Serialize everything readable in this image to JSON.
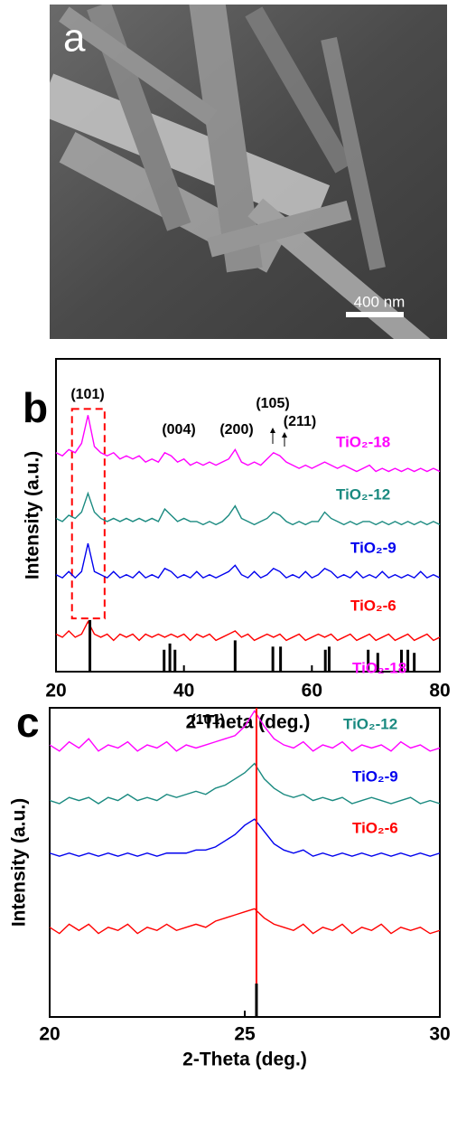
{
  "panel_a": {
    "label": "a",
    "scale_bar": "400 nm"
  },
  "chart_data": [
    {
      "type": "line",
      "panel_label": "b",
      "x_label": "2-Theta (deg.)",
      "y_label": "Intensity (a.u.)",
      "x": [
        20,
        21,
        22,
        23,
        24,
        25,
        26,
        27,
        28,
        29,
        30,
        31,
        32,
        33,
        34,
        35,
        36,
        37,
        38,
        39,
        40,
        41,
        42,
        43,
        44,
        45,
        46,
        47,
        48,
        49,
        50,
        51,
        52,
        53,
        54,
        55,
        56,
        57,
        58,
        59,
        60,
        61,
        62,
        63,
        64,
        65,
        66,
        67,
        68,
        69,
        70,
        71,
        72,
        73,
        74,
        75,
        76,
        77,
        78,
        79,
        80
      ],
      "series": [
        {
          "name": "TiO₂-18",
          "color": "#ff00ff",
          "values": [
            70,
            69,
            71,
            70,
            73,
            82,
            72,
            70,
            69,
            70,
            68,
            69,
            68,
            69,
            67,
            68,
            67,
            70,
            69,
            67,
            68,
            66,
            67,
            66,
            67,
            66,
            67,
            68,
            71,
            67,
            66,
            67,
            66,
            68,
            70,
            69,
            67,
            66,
            65,
            66,
            65,
            66,
            67,
            66,
            65,
            66,
            65,
            64,
            65,
            66,
            64,
            65,
            64,
            65,
            64,
            65,
            64,
            65,
            64,
            65,
            64
          ]
        },
        {
          "name": "TiO₂-12",
          "color": "#1a8a80",
          "values": [
            49,
            48,
            50,
            49,
            51,
            57,
            51,
            49,
            48,
            49,
            48,
            49,
            48,
            49,
            48,
            49,
            48,
            52,
            50,
            48,
            49,
            48,
            48,
            47,
            48,
            47,
            48,
            50,
            53,
            49,
            48,
            47,
            48,
            49,
            51,
            50,
            48,
            47,
            48,
            47,
            48,
            48,
            51,
            49,
            48,
            47,
            48,
            47,
            48,
            48,
            47,
            48,
            47,
            48,
            47,
            48,
            47,
            48,
            47,
            48,
            47
          ]
        },
        {
          "name": "TiO₂-9",
          "color": "#0000ee",
          "values": [
            31,
            30,
            32,
            30,
            32,
            41,
            32,
            31,
            30,
            32,
            30,
            31,
            30,
            32,
            30,
            31,
            30,
            33,
            32,
            30,
            31,
            30,
            32,
            30,
            31,
            30,
            31,
            32,
            34,
            31,
            30,
            32,
            30,
            31,
            33,
            32,
            30,
            31,
            30,
            32,
            30,
            31,
            33,
            32,
            30,
            31,
            30,
            32,
            30,
            31,
            30,
            32,
            30,
            31,
            30,
            31,
            30,
            32,
            30,
            31,
            30
          ]
        },
        {
          "name": "TiO₂-6",
          "color": "#ff0000",
          "values": [
            12,
            11,
            13,
            11,
            12,
            16,
            12,
            11,
            12,
            10,
            12,
            11,
            12,
            10,
            12,
            11,
            12,
            11,
            12,
            11,
            12,
            10,
            12,
            11,
            12,
            10,
            11,
            12,
            13,
            11,
            12,
            10,
            11,
            12,
            11,
            12,
            10,
            11,
            12,
            10,
            11,
            12,
            11,
            12,
            10,
            11,
            12,
            10,
            11,
            12,
            10,
            11,
            12,
            10,
            11,
            12,
            10,
            11,
            12,
            10,
            11
          ]
        }
      ],
      "reference": {
        "color": "#000000",
        "x": [
          25.3,
          36.9,
          37.8,
          38.6,
          48.0,
          53.9,
          55.1,
          62.1,
          62.7,
          68.8,
          70.3,
          74.0,
          75.0,
          76.0
        ],
        "values": [
          16.5,
          7,
          9,
          7,
          10,
          8,
          8,
          7,
          8,
          7,
          6,
          7,
          7,
          6
        ]
      },
      "highlight_box": {
        "color": "#ff0000",
        "xlim": [
          22.5,
          27.6
        ],
        "ylim": [
          17,
          84
        ]
      },
      "annotations": [
        "(101)",
        "(004)",
        "(200)",
        "(105)",
        "(211)"
      ],
      "xlim": [
        20,
        80
      ],
      "xticks": [
        20,
        40,
        60,
        80
      ],
      "ylim": [
        0,
        100
      ]
    },
    {
      "type": "line",
      "panel_label": "c",
      "x_label": "2-Theta (deg.)",
      "y_label": "Intensity (a.u.)",
      "x": [
        20,
        20.25,
        20.5,
        20.75,
        21,
        21.25,
        21.5,
        21.75,
        22,
        22.25,
        22.5,
        22.75,
        23,
        23.25,
        23.5,
        23.75,
        24,
        24.25,
        24.5,
        24.75,
        25,
        25.25,
        25.5,
        25.75,
        26,
        26.25,
        26.5,
        26.75,
        27,
        27.25,
        27.5,
        27.75,
        28,
        28.25,
        28.5,
        28.75,
        29,
        29.25,
        29.5,
        29.75,
        30
      ],
      "series": [
        {
          "name": "TiO₂-18",
          "color": "#ff00ff",
          "values": [
            88,
            86,
            89,
            87,
            90,
            86,
            88,
            87,
            89,
            86,
            88,
            87,
            89,
            86,
            88,
            87,
            88,
            89,
            90,
            91,
            94,
            99,
            94,
            90,
            88,
            87,
            89,
            86,
            88,
            87,
            89,
            86,
            88,
            87,
            88,
            86,
            89,
            87,
            88,
            86,
            87
          ]
        },
        {
          "name": "TiO₂-12",
          "color": "#1a8a80",
          "values": [
            70,
            69,
            71,
            70,
            71,
            69,
            71,
            70,
            72,
            70,
            71,
            70,
            72,
            71,
            72,
            73,
            72,
            74,
            75,
            77,
            79,
            82,
            77,
            74,
            72,
            71,
            72,
            70,
            71,
            70,
            71,
            69,
            70,
            71,
            70,
            69,
            70,
            71,
            69,
            70,
            69
          ]
        },
        {
          "name": "TiO₂-9",
          "color": "#0000ee",
          "values": [
            53,
            52,
            53,
            52,
            53,
            52,
            53,
            52,
            53,
            52,
            53,
            52,
            53,
            53,
            53,
            54,
            54,
            55,
            57,
            59,
            62,
            64,
            60,
            56,
            54,
            53,
            54,
            52,
            53,
            52,
            53,
            52,
            53,
            52,
            53,
            52,
            53,
            52,
            53,
            52,
            53
          ]
        },
        {
          "name": "TiO₂-6",
          "color": "#ff0000",
          "values": [
            29,
            27,
            30,
            28,
            30,
            27,
            29,
            28,
            30,
            27,
            29,
            28,
            30,
            28,
            29,
            30,
            29,
            31,
            32,
            33,
            34,
            35,
            32,
            30,
            29,
            28,
            30,
            27,
            29,
            28,
            30,
            27,
            29,
            28,
            30,
            27,
            29,
            28,
            29,
            27,
            28
          ]
        }
      ],
      "reference": {
        "color": "#000000",
        "x": [
          25.3
        ],
        "values": [
          10.8
        ]
      },
      "marker_line": {
        "color": "#ff0000",
        "x": 25.3
      },
      "annotations": [
        "(101)"
      ],
      "xlim": [
        20,
        30
      ],
      "xticks": [
        20,
        25,
        30
      ],
      "ylim": [
        0,
        100
      ]
    }
  ]
}
